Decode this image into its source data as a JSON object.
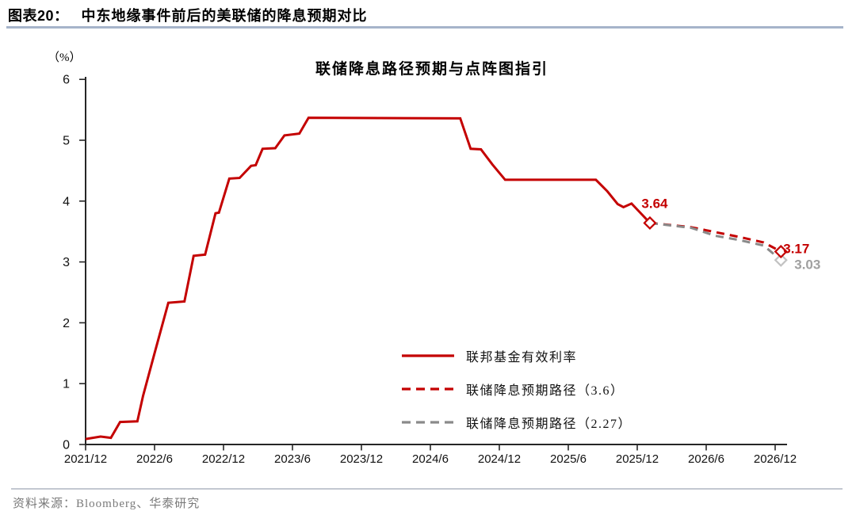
{
  "header": {
    "fig_label": "图表20：",
    "fig_title": "中东地缘事件前后的美联储的降息预期对比"
  },
  "source": {
    "text": "资料来源：Bloomberg、华泰研究"
  },
  "colors": {
    "accent_red": "#c40000",
    "dash_gray": "#8a8a8a",
    "light_gray_marker": "#c2c2c2",
    "gray_label": "#a0a0a0",
    "axis": "#262626",
    "header_rule": "#a6b4ca",
    "bottom_rule": "#c3c8d1",
    "source_text": "#7a7a7a"
  },
  "chart_data": {
    "type": "line",
    "title": "联储降息路径预期与点阵图指引",
    "unit_label": "（%）",
    "grid": false,
    "legend_position": "inside lower right",
    "x_unit": "months since 2021/12",
    "ylim": [
      0,
      6
    ],
    "y_ticks": [
      0,
      1,
      2,
      3,
      4,
      5,
      6
    ],
    "x_ticks": [
      {
        "month": 0,
        "label": "2021/12"
      },
      {
        "month": 6,
        "label": "2022/6"
      },
      {
        "month": 12,
        "label": "2022/12"
      },
      {
        "month": 18,
        "label": "2023/6"
      },
      {
        "month": 24,
        "label": "2023/12"
      },
      {
        "month": 30,
        "label": "2024/6"
      },
      {
        "month": 36,
        "label": "2024/12"
      },
      {
        "month": 42,
        "label": "2025/6"
      },
      {
        "month": 48,
        "label": "2025/12"
      },
      {
        "month": 54,
        "label": "2026/6"
      },
      {
        "month": 60,
        "label": "2026/12"
      }
    ],
    "series": [
      {
        "id": "effective-fed-funds-rate",
        "name": "联邦基金有效利率",
        "style": "solid",
        "color": "#c40000",
        "end_marker": true,
        "end_label": {
          "text": "3.64",
          "anchor": "middle",
          "dx": 6,
          "dy": -19,
          "color": "#c40000"
        },
        "points": [
          [
            0,
            0.09
          ],
          [
            1.3,
            0.13
          ],
          [
            2.2,
            0.11
          ],
          [
            3,
            0.37
          ],
          [
            4.5,
            0.38
          ],
          [
            5,
            0.8
          ],
          [
            6,
            1.5
          ],
          [
            7.2,
            2.33
          ],
          [
            8.6,
            2.35
          ],
          [
            9.4,
            3.1
          ],
          [
            10.4,
            3.12
          ],
          [
            11.3,
            3.8
          ],
          [
            11.6,
            3.81
          ],
          [
            12.5,
            4.37
          ],
          [
            13.4,
            4.38
          ],
          [
            14.4,
            4.58
          ],
          [
            14.8,
            4.59
          ],
          [
            15.4,
            4.86
          ],
          [
            16.5,
            4.87
          ],
          [
            17.3,
            5.08
          ],
          [
            18.6,
            5.11
          ],
          [
            19.4,
            5.37
          ],
          [
            32.6,
            5.36
          ],
          [
            33.5,
            4.86
          ],
          [
            34.4,
            4.85
          ],
          [
            35.4,
            4.6
          ],
          [
            36.5,
            4.35
          ],
          [
            44.4,
            4.35
          ],
          [
            45.4,
            4.16
          ],
          [
            46.3,
            3.95
          ],
          [
            46.8,
            3.9
          ],
          [
            47.5,
            3.96
          ],
          [
            49.1,
            3.64
          ]
        ]
      },
      {
        "id": "expected-path-3-6",
        "name": "联储降息预期路径（3.6）",
        "style": "dashed",
        "color": "#c40000",
        "end_marker": true,
        "end_label": {
          "text": "3.17",
          "anchor": "start",
          "dx": 3,
          "dy": 2,
          "color": "#c40000"
        },
        "points": [
          [
            49.1,
            3.64
          ],
          [
            52.7,
            3.57
          ],
          [
            54.8,
            3.49
          ],
          [
            56.9,
            3.41
          ],
          [
            59,
            3.32
          ],
          [
            60.5,
            3.17
          ]
        ]
      },
      {
        "id": "expected-path-2-27",
        "name": "联储降息预期路径（2.27）",
        "style": "dashed",
        "color": "#8a8a8a",
        "marker_color": "#c2c2c2",
        "end_marker": true,
        "end_label": {
          "text": "3.03",
          "anchor": "start",
          "dx": 17,
          "dy": 11,
          "color": "#a0a0a0"
        },
        "points": [
          [
            49.1,
            3.64
          ],
          [
            52.7,
            3.56
          ],
          [
            54.8,
            3.43
          ],
          [
            56.9,
            3.36
          ],
          [
            59,
            3.27
          ],
          [
            60.5,
            3.03
          ]
        ]
      }
    ]
  }
}
